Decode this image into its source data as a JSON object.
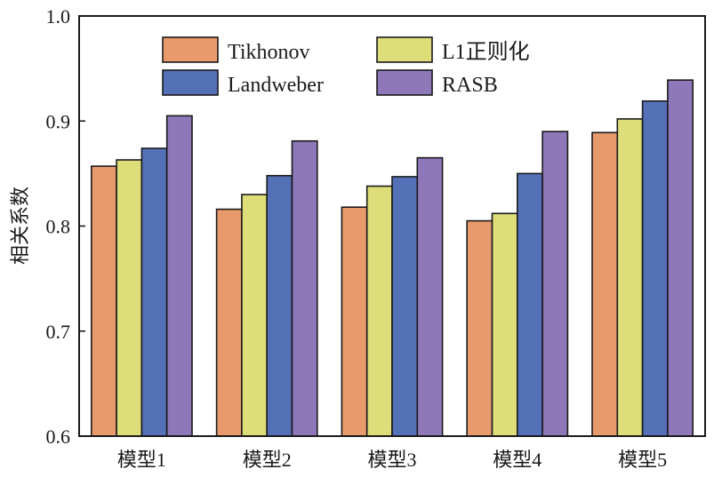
{
  "chart_data": {
    "type": "bar",
    "categories": [
      "模型1",
      "模型2",
      "模型3",
      "模型4",
      "模型5"
    ],
    "series": [
      {
        "name": "Tikhonov",
        "color": "#E99A6D",
        "values": [
          0.857,
          0.816,
          0.818,
          0.805,
          0.889
        ]
      },
      {
        "name": "L1正则化",
        "color": "#DDDD7A",
        "values": [
          0.863,
          0.83,
          0.838,
          0.812,
          0.902
        ]
      },
      {
        "name": "Landweber",
        "color": "#5470B7",
        "values": [
          0.874,
          0.848,
          0.847,
          0.85,
          0.919
        ]
      },
      {
        "name": "RASB",
        "color": "#8E78BA",
        "values": [
          0.905,
          0.881,
          0.865,
          0.89,
          0.939
        ]
      }
    ],
    "title": "",
    "xlabel": "",
    "ylabel": "相关系数",
    "ylim": [
      0.6,
      1.0
    ],
    "yticks": [
      "0.6",
      "0.7",
      "0.8",
      "0.9",
      "1.0"
    ],
    "ytick_values": [
      0.6,
      0.7,
      0.8,
      0.9,
      1.0
    ],
    "grid": false,
    "legend": {
      "position": "top-left",
      "columns": 2
    }
  }
}
